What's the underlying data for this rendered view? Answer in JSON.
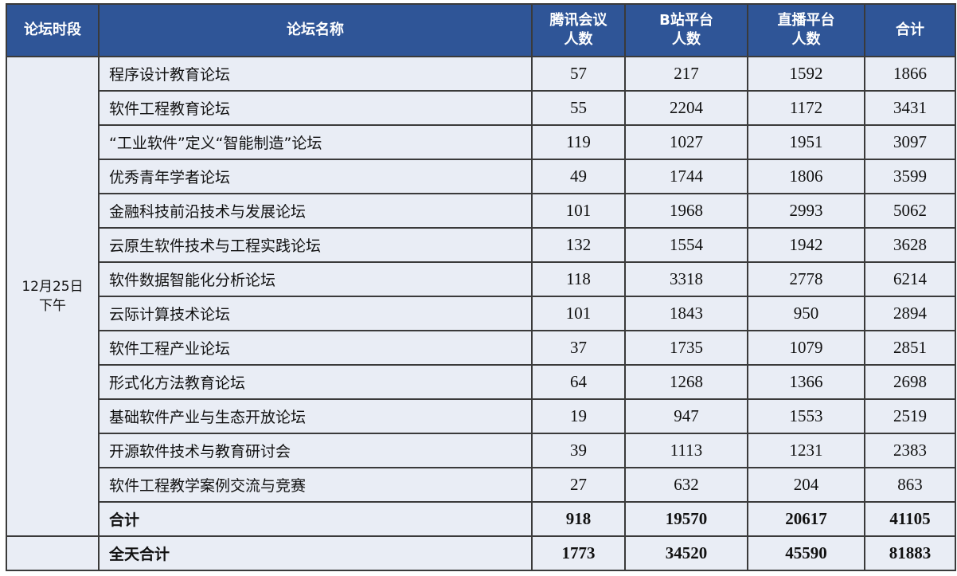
{
  "headers": {
    "period": "论坛时段",
    "name": "论坛名称",
    "tencent": [
      "腾讯会议",
      "人数"
    ],
    "bilibili": [
      "B站平台",
      "人数"
    ],
    "live": [
      "直播平台",
      "人数"
    ],
    "total": "合计"
  },
  "period": [
    "12月25日",
    "下午"
  ],
  "rows": [
    {
      "name": "程序设计教育论坛",
      "tencent": "57",
      "bilibili": "217",
      "live": "1592",
      "total": "1866"
    },
    {
      "name": "软件工程教育论坛",
      "tencent": "55",
      "bilibili": "2204",
      "live": "1172",
      "total": "3431"
    },
    {
      "name": "“工业软件”定义“智能制造”论坛",
      "tencent": "119",
      "bilibili": "1027",
      "live": "1951",
      "total": "3097"
    },
    {
      "name": "优秀青年学者论坛",
      "tencent": "49",
      "bilibili": "1744",
      "live": "1806",
      "total": "3599"
    },
    {
      "name": "金融科技前沿技术与发展论坛",
      "tencent": "101",
      "bilibili": "1968",
      "live": "2993",
      "total": "5062"
    },
    {
      "name": "云原生软件技术与工程实践论坛",
      "tencent": "132",
      "bilibili": "1554",
      "live": "1942",
      "total": "3628"
    },
    {
      "name": "软件数据智能化分析论坛",
      "tencent": "118",
      "bilibili": "3318",
      "live": "2778",
      "total": "6214"
    },
    {
      "name": "云际计算技术论坛",
      "tencent": "101",
      "bilibili": "1843",
      "live": "950",
      "total": "2894"
    },
    {
      "name": "软件工程产业论坛",
      "tencent": "37",
      "bilibili": "1735",
      "live": "1079",
      "total": "2851"
    },
    {
      "name": "形式化方法教育论坛",
      "tencent": "64",
      "bilibili": "1268",
      "live": "1366",
      "total": "2698"
    },
    {
      "name": "基础软件产业与生态开放论坛",
      "tencent": "19",
      "bilibili": "947",
      "live": "1553",
      "total": "2519"
    },
    {
      "name": "开源软件技术与教育研讨会",
      "tencent": "39",
      "bilibili": "1113",
      "live": "1231",
      "total": "2383"
    },
    {
      "name": "软件工程教学案例交流与竞赛",
      "tencent": "27",
      "bilibili": "632",
      "live": "204",
      "total": "863"
    }
  ],
  "subtotal": {
    "name": "合计",
    "tencent": "918",
    "bilibili": "19570",
    "live": "20617",
    "total": "41105"
  },
  "grand_total": {
    "name": "全天合计",
    "tencent": "1773",
    "bilibili": "34520",
    "live": "45590",
    "total": "81883"
  }
}
